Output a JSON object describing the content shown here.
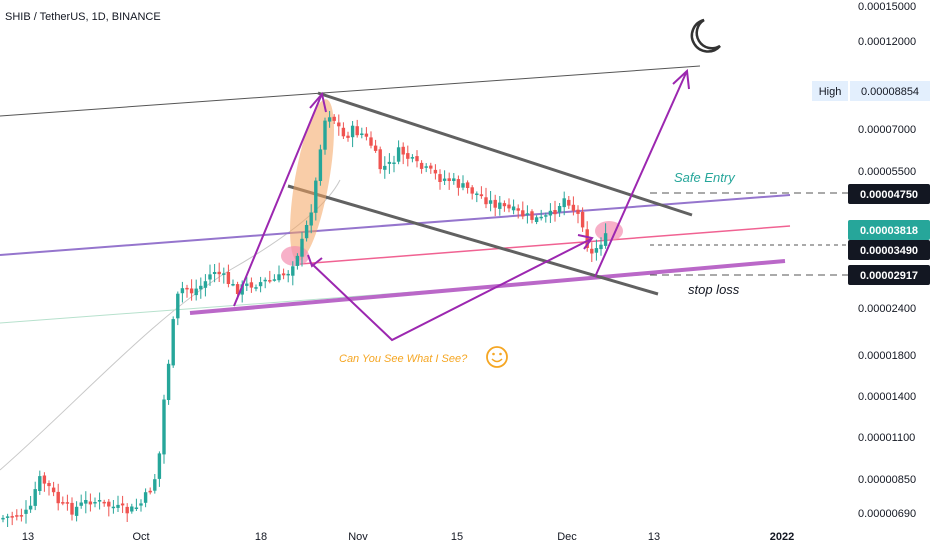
{
  "header": {
    "title": "SHIB / TetherUS, 1D, BINANCE"
  },
  "chart_data": {
    "type": "candlestick",
    "title": "SHIB / TetherUS, 1D, BINANCE",
    "yscale": "log",
    "ylim": [
      6.4e-06,
      0.000156
    ],
    "y_ticks": [
      "0.00015000",
      "0.00012000",
      "0.00007000",
      "0.00005500",
      "0.00002400",
      "0.00001800",
      "0.00001400",
      "0.00001100",
      "0.00000850",
      "0.00000690"
    ],
    "x_ticks": [
      "13",
      "Oct",
      "18",
      "Nov",
      "15",
      "Dec",
      "13",
      "2022"
    ],
    "price_tags": [
      {
        "label": "High",
        "value": "0.00008854",
        "style": "light"
      },
      {
        "value": "0.00004750",
        "style": "dark"
      },
      {
        "value": "0.00003818",
        "style": "accent"
      },
      {
        "value": "0.00003490",
        "style": "dark"
      },
      {
        "value": "0.00002917",
        "style": "dark"
      }
    ],
    "annotations": [
      {
        "text": "Safe Entry",
        "color": "#26a69a"
      },
      {
        "text": "stop loss",
        "color": "#131722"
      },
      {
        "text": "Can You See What I See?",
        "color": "#f5a623"
      }
    ],
    "colors": {
      "up": "#26a69a",
      "down": "#ef5350",
      "accent": "#26a69a",
      "purple": "#9c27b0"
    }
  }
}
